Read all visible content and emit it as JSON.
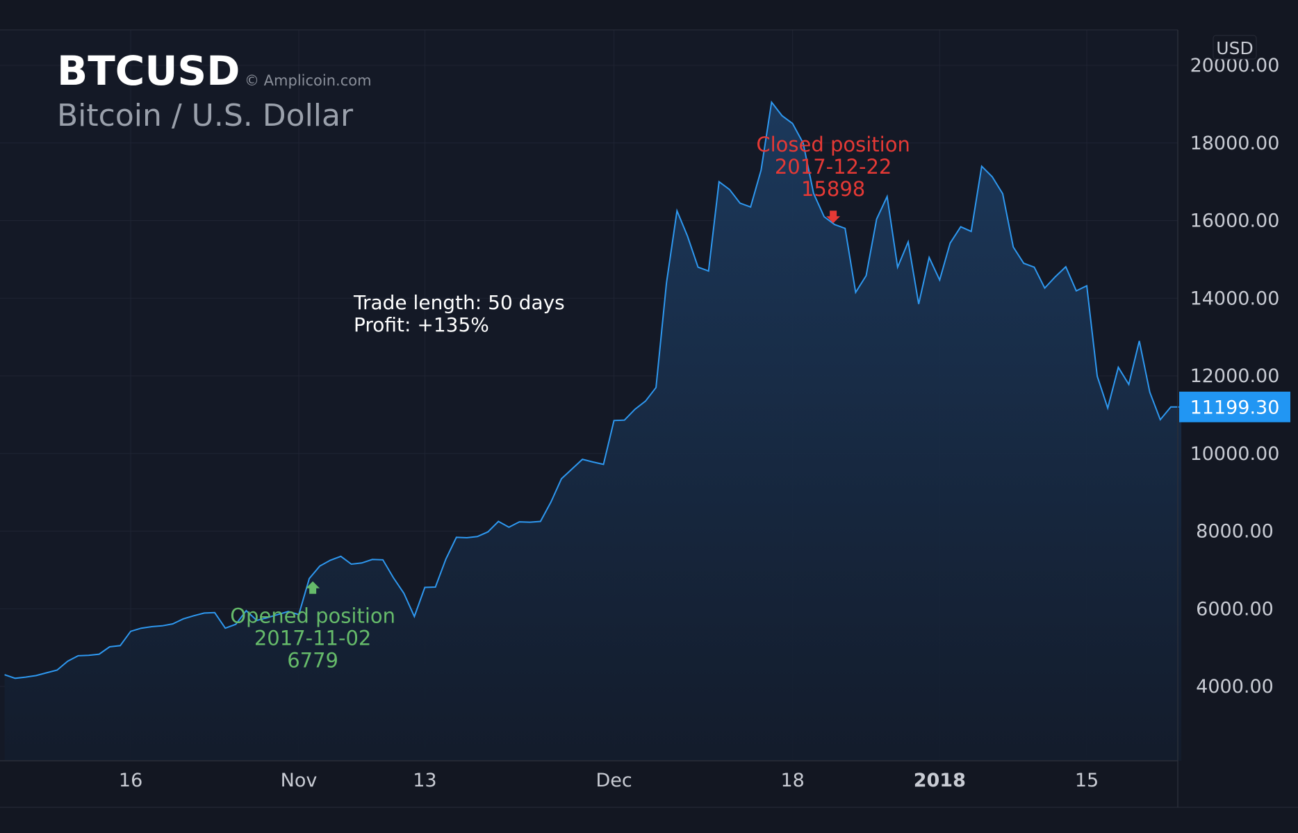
{
  "colors": {
    "background": "#131722",
    "grid": "#1f2433",
    "axis_text": "#c9ccd4",
    "line": "#2e98f0",
    "price_badge": "#2196f3",
    "open_marker": "#66bb6a",
    "close_marker": "#e53935",
    "title": "#ffffff",
    "subtitle": "#9aa0ab",
    "watermark": "#8a8f9a"
  },
  "header": {
    "symbol": "BTCUSD",
    "watermark": "© Amplicoin.com",
    "description": "Bitcoin / U.S. Dollar"
  },
  "currency_label": "USD",
  "last_price_label": "11199.30",
  "trade_summary": {
    "line1": "Trade length: 50 days",
    "line2": "Profit: +135%"
  },
  "annotations": {
    "open": {
      "line1": "Opened position",
      "line2": "2017-11-02",
      "line3": "6779",
      "marker": "up-arrow-icon"
    },
    "close": {
      "line1": "Closed position",
      "line2": "2017-12-22",
      "line3": "15898",
      "marker": "down-arrow-icon"
    }
  },
  "chart_data": {
    "type": "area",
    "title": "BTCUSD",
    "subtitle": "Bitcoin / U.S. Dollar",
    "ylabel": "USD",
    "ylim": [
      2000,
      21000
    ],
    "grid": true,
    "y_ticks": [
      "4000.00",
      "6000.00",
      "8000.00",
      "10000.00",
      "12000.00",
      "14000.00",
      "16000.00",
      "18000.00",
      "20000.00"
    ],
    "x_ticks": [
      {
        "label": "16",
        "date": "2017-10-16",
        "bold": false
      },
      {
        "label": "Nov",
        "date": "2017-11-01",
        "bold": false
      },
      {
        "label": "13",
        "date": "2017-11-13",
        "bold": false
      },
      {
        "label": "Dec",
        "date": "2017-12-01",
        "bold": false
      },
      {
        "label": "18",
        "date": "2017-12-18",
        "bold": false
      },
      {
        "label": "2018",
        "date": "2018-01-01",
        "bold": true
      },
      {
        "label": "15",
        "date": "2018-01-15",
        "bold": false
      }
    ],
    "x": [
      "2017-10-04",
      "2017-10-05",
      "2017-10-06",
      "2017-10-07",
      "2017-10-08",
      "2017-10-09",
      "2017-10-10",
      "2017-10-11",
      "2017-10-12",
      "2017-10-13",
      "2017-10-14",
      "2017-10-15",
      "2017-10-16",
      "2017-10-17",
      "2017-10-18",
      "2017-10-19",
      "2017-10-20",
      "2017-10-21",
      "2017-10-22",
      "2017-10-23",
      "2017-10-24",
      "2017-10-25",
      "2017-10-26",
      "2017-10-27",
      "2017-10-28",
      "2017-10-29",
      "2017-10-30",
      "2017-10-31",
      "2017-11-01",
      "2017-11-02",
      "2017-11-03",
      "2017-11-04",
      "2017-11-05",
      "2017-11-06",
      "2017-11-07",
      "2017-11-08",
      "2017-11-09",
      "2017-11-10",
      "2017-11-11",
      "2017-11-12",
      "2017-11-13",
      "2017-11-14",
      "2017-11-15",
      "2017-11-16",
      "2017-11-17",
      "2017-11-18",
      "2017-11-19",
      "2017-11-20",
      "2017-11-21",
      "2017-11-22",
      "2017-11-23",
      "2017-11-24",
      "2017-11-25",
      "2017-11-26",
      "2017-11-27",
      "2017-11-28",
      "2017-11-29",
      "2017-11-30",
      "2017-12-01",
      "2017-12-02",
      "2017-12-03",
      "2017-12-04",
      "2017-12-05",
      "2017-12-06",
      "2017-12-07",
      "2017-12-08",
      "2017-12-09",
      "2017-12-10",
      "2017-12-11",
      "2017-12-12",
      "2017-12-13",
      "2017-12-14",
      "2017-12-15",
      "2017-12-16",
      "2017-12-17",
      "2017-12-18",
      "2017-12-19",
      "2017-12-20",
      "2017-12-21",
      "2017-12-22",
      "2017-12-23",
      "2017-12-24",
      "2017-12-25",
      "2017-12-26",
      "2017-12-27",
      "2017-12-28",
      "2017-12-29",
      "2017-12-30",
      "2017-12-31",
      "2018-01-01",
      "2018-01-02",
      "2018-01-03",
      "2018-01-04",
      "2018-01-05",
      "2018-01-06",
      "2018-01-07",
      "2018-01-08",
      "2018-01-09",
      "2018-01-10",
      "2018-01-11",
      "2018-01-12",
      "2018-01-13",
      "2018-01-14",
      "2018-01-15",
      "2018-01-16",
      "2018-01-17",
      "2018-01-18",
      "2018-01-19",
      "2018-01-20",
      "2018-01-21",
      "2018-01-22",
      "2018-01-23",
      "2018-01-24"
    ],
    "series": [
      {
        "values": [
          4300,
          4210,
          4240,
          4280,
          4350,
          4420,
          4650,
          4790,
          4800,
          4830,
          5020,
          5050,
          5420,
          5500,
          5540,
          5560,
          5610,
          5740,
          5820,
          5890,
          5900,
          5500,
          5600,
          5950,
          5700,
          5770,
          5850,
          5930,
          5850,
          6779,
          7100,
          7250,
          7350,
          7150,
          7180,
          7270,
          7260,
          6800,
          6400,
          5800,
          6550,
          6560,
          7280,
          7840,
          7830,
          7860,
          7980,
          8250,
          8100,
          8240,
          8230,
          8250,
          8750,
          9350,
          9600,
          9850,
          9780,
          9720,
          10850,
          10860,
          11140,
          11350,
          11700,
          14400,
          16250,
          15600,
          14800,
          14700,
          17000,
          16800,
          16450,
          16350,
          17300,
          19050,
          18700,
          18500,
          18000,
          16700,
          16100,
          15898,
          15800,
          14150,
          14580,
          16040,
          16620,
          14800,
          15450,
          13850,
          15050,
          14470,
          15420,
          15840,
          15720,
          17400,
          17130,
          16690,
          15320,
          14900,
          14800,
          14260,
          14550,
          14810,
          14190,
          14320,
          11990,
          11170,
          12220,
          11780,
          12900,
          11580,
          10870,
          11200,
          11199.3
        ]
      }
    ],
    "markers": [
      {
        "label": "Opened position",
        "date": "2017-11-02",
        "value": 6779,
        "direction": "up"
      },
      {
        "label": "Closed position",
        "date": "2017-12-22",
        "value": 15898,
        "direction": "down"
      }
    ],
    "last_price": 11199.3
  }
}
